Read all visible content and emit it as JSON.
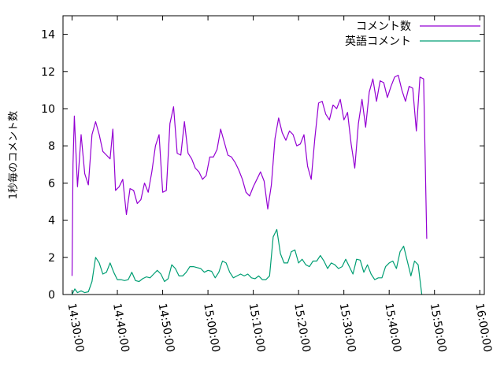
{
  "chart_data": {
    "type": "line",
    "title": "",
    "xlabel": "",
    "ylabel": "1秒毎のコメント数",
    "ylim": [
      0,
      15
    ],
    "yticks": [
      0,
      2,
      4,
      6,
      8,
      10,
      12,
      14
    ],
    "x_range_minutes": [
      -2,
      91
    ],
    "xticks": [
      {
        "minute": 0,
        "label": "14:30:00"
      },
      {
        "minute": 10,
        "label": "14:40:00"
      },
      {
        "minute": 20,
        "label": "14:50:00"
      },
      {
        "minute": 30,
        "label": "15:00:00"
      },
      {
        "minute": 40,
        "label": "15:10:00"
      },
      {
        "minute": 50,
        "label": "15:20:00"
      },
      {
        "minute": 60,
        "label": "15:30:00"
      },
      {
        "minute": 70,
        "label": "15:40:00"
      },
      {
        "minute": 80,
        "label": "15:50:00"
      },
      {
        "minute": 90,
        "label": "16:00:00"
      }
    ],
    "grid": false,
    "legend_position": "top-right",
    "series": [
      {
        "name": "コメント数",
        "color": "#9400d3",
        "points": [
          [
            0,
            1
          ],
          [
            0.2,
            7
          ],
          [
            0.5,
            9.6
          ],
          [
            1.2,
            5.8
          ],
          [
            2,
            8.6
          ],
          [
            2.8,
            6.5
          ],
          [
            3.6,
            5.9
          ],
          [
            4.4,
            8.6
          ],
          [
            5.2,
            9.3
          ],
          [
            6,
            8.6
          ],
          [
            6.8,
            7.7
          ],
          [
            7.6,
            7.5
          ],
          [
            8.4,
            7.3
          ],
          [
            9,
            8.9
          ],
          [
            9.6,
            5.6
          ],
          [
            10.4,
            5.8
          ],
          [
            11.2,
            6.2
          ],
          [
            12,
            4.3
          ],
          [
            12.8,
            5.7
          ],
          [
            13.6,
            5.6
          ],
          [
            14.4,
            4.9
          ],
          [
            15.2,
            5.1
          ],
          [
            16,
            6
          ],
          [
            16.8,
            5.5
          ],
          [
            17.6,
            6.6
          ],
          [
            18.4,
            8
          ],
          [
            19.2,
            8.6
          ],
          [
            20,
            5.5
          ],
          [
            20.8,
            5.6
          ],
          [
            21.6,
            9.2
          ],
          [
            22.4,
            10.1
          ],
          [
            23.2,
            7.6
          ],
          [
            24,
            7.5
          ],
          [
            24.8,
            9.3
          ],
          [
            25.6,
            7.6
          ],
          [
            26.4,
            7.3
          ],
          [
            27.2,
            6.8
          ],
          [
            28,
            6.6
          ],
          [
            28.8,
            6.2
          ],
          [
            29.6,
            6.4
          ],
          [
            30.4,
            7.4
          ],
          [
            31.2,
            7.4
          ],
          [
            32,
            7.8
          ],
          [
            32.8,
            8.9
          ],
          [
            33.6,
            8.2
          ],
          [
            34.4,
            7.5
          ],
          [
            35.2,
            7.4
          ],
          [
            36,
            7.1
          ],
          [
            36.8,
            6.7
          ],
          [
            37.6,
            6.2
          ],
          [
            38.4,
            5.5
          ],
          [
            39.2,
            5.3
          ],
          [
            40,
            5.8
          ],
          [
            40.8,
            6.2
          ],
          [
            41.6,
            6.6
          ],
          [
            42.4,
            6.1
          ],
          [
            43.2,
            4.6
          ],
          [
            44,
            5.9
          ],
          [
            44.8,
            8.4
          ],
          [
            45.6,
            9.5
          ],
          [
            46.4,
            8.7
          ],
          [
            47.2,
            8.3
          ],
          [
            48,
            8.8
          ],
          [
            48.8,
            8.6
          ],
          [
            49.6,
            8
          ],
          [
            50.4,
            8.1
          ],
          [
            51.2,
            8.6
          ],
          [
            52,
            6.9
          ],
          [
            52.8,
            6.2
          ],
          [
            53.6,
            8.4
          ],
          [
            54.4,
            10.3
          ],
          [
            55.2,
            10.4
          ],
          [
            56,
            9.7
          ],
          [
            56.8,
            9.4
          ],
          [
            57.6,
            10.2
          ],
          [
            58.4,
            10
          ],
          [
            59.2,
            10.5
          ],
          [
            60,
            9.4
          ],
          [
            60.8,
            9.8
          ],
          [
            61.6,
            8.1
          ],
          [
            62.4,
            6.8
          ],
          [
            63.2,
            9.2
          ],
          [
            64,
            10.5
          ],
          [
            64.8,
            9
          ],
          [
            65.6,
            10.9
          ],
          [
            66.4,
            11.6
          ],
          [
            67.2,
            10.4
          ],
          [
            68,
            11.5
          ],
          [
            68.8,
            11.4
          ],
          [
            69.6,
            10.6
          ],
          [
            70.4,
            11.2
          ],
          [
            71.2,
            11.7
          ],
          [
            72,
            11.8
          ],
          [
            72.8,
            11
          ],
          [
            73.6,
            10.4
          ],
          [
            74.4,
            11.2
          ],
          [
            75.2,
            11.1
          ],
          [
            76,
            8.8
          ],
          [
            76.8,
            11.7
          ],
          [
            77.6,
            11.6
          ],
          [
            78.3,
            3
          ]
        ]
      },
      {
        "name": "英語コメント",
        "color": "#009e73",
        "points": [
          [
            0,
            0
          ],
          [
            0.6,
            0.3
          ],
          [
            1.2,
            0.1
          ],
          [
            2,
            0.2
          ],
          [
            2.8,
            0.1
          ],
          [
            3.6,
            0.15
          ],
          [
            4.4,
            0.7
          ],
          [
            5.2,
            2
          ],
          [
            6,
            1.7
          ],
          [
            6.8,
            1.1
          ],
          [
            7.6,
            1.2
          ],
          [
            8.4,
            1.7
          ],
          [
            9.2,
            1.2
          ],
          [
            10,
            0.8
          ],
          [
            10.8,
            0.8
          ],
          [
            11.6,
            0.75
          ],
          [
            12.4,
            0.8
          ],
          [
            13.2,
            1.2
          ],
          [
            14,
            0.75
          ],
          [
            14.8,
            0.7
          ],
          [
            15.6,
            0.85
          ],
          [
            16.4,
            0.95
          ],
          [
            17.2,
            0.9
          ],
          [
            18,
            1.1
          ],
          [
            18.8,
            1.3
          ],
          [
            19.6,
            1.1
          ],
          [
            20.4,
            0.7
          ],
          [
            21.2,
            0.85
          ],
          [
            22,
            1.6
          ],
          [
            22.8,
            1.4
          ],
          [
            23.6,
            1
          ],
          [
            24.4,
            1
          ],
          [
            25.2,
            1.2
          ],
          [
            26,
            1.5
          ],
          [
            26.8,
            1.5
          ],
          [
            27.6,
            1.45
          ],
          [
            28.4,
            1.4
          ],
          [
            29.2,
            1.2
          ],
          [
            30,
            1.3
          ],
          [
            30.8,
            1.25
          ],
          [
            31.6,
            0.9
          ],
          [
            32.4,
            1.2
          ],
          [
            33.2,
            1.8
          ],
          [
            34,
            1.7
          ],
          [
            34.8,
            1.2
          ],
          [
            35.6,
            0.9
          ],
          [
            36.4,
            1
          ],
          [
            37.2,
            1.1
          ],
          [
            38,
            1
          ],
          [
            38.8,
            1.1
          ],
          [
            39.6,
            0.9
          ],
          [
            40.4,
            0.85
          ],
          [
            41.2,
            1
          ],
          [
            42,
            0.8
          ],
          [
            42.8,
            0.8
          ],
          [
            43.6,
            1
          ],
          [
            44.4,
            3.1
          ],
          [
            45.2,
            3.5
          ],
          [
            46,
            2.2
          ],
          [
            46.8,
            1.7
          ],
          [
            47.6,
            1.7
          ],
          [
            48.4,
            2.3
          ],
          [
            49.2,
            2.4
          ],
          [
            50,
            1.7
          ],
          [
            50.8,
            1.9
          ],
          [
            51.6,
            1.6
          ],
          [
            52.4,
            1.5
          ],
          [
            53.2,
            1.8
          ],
          [
            54,
            1.8
          ],
          [
            54.8,
            2.1
          ],
          [
            55.6,
            1.8
          ],
          [
            56.4,
            1.4
          ],
          [
            57.2,
            1.7
          ],
          [
            58,
            1.6
          ],
          [
            58.8,
            1.4
          ],
          [
            59.6,
            1.5
          ],
          [
            60.4,
            1.9
          ],
          [
            61.2,
            1.5
          ],
          [
            62,
            1.1
          ],
          [
            62.8,
            1.9
          ],
          [
            63.6,
            1.85
          ],
          [
            64.4,
            1.2
          ],
          [
            65.2,
            1.6
          ],
          [
            66,
            1.1
          ],
          [
            66.8,
            0.8
          ],
          [
            67.6,
            0.9
          ],
          [
            68.4,
            0.9
          ],
          [
            69.2,
            1.5
          ],
          [
            70,
            1.7
          ],
          [
            70.8,
            1.8
          ],
          [
            71.6,
            1.4
          ],
          [
            72.4,
            2.3
          ],
          [
            73.2,
            2.6
          ],
          [
            74,
            1.8
          ],
          [
            74.8,
            1
          ],
          [
            75.6,
            1.8
          ],
          [
            76.4,
            1.6
          ],
          [
            77.2,
            0
          ]
        ]
      }
    ]
  }
}
